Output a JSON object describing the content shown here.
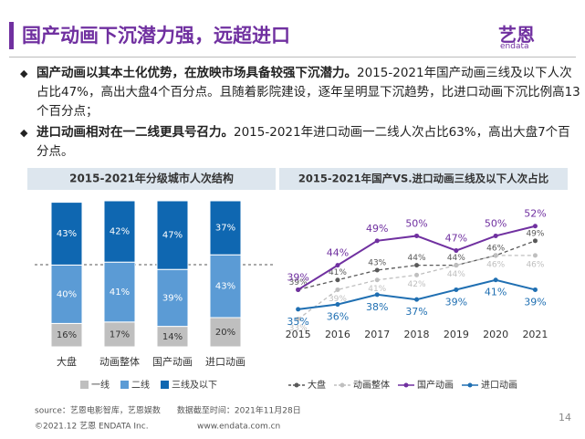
{
  "title": "国产动画下沉潜力强，远超进口",
  "logo": {
    "name": "艺恩",
    "sub": "endata"
  },
  "bullets": [
    {
      "bold": "国产动画以其本土化优势，在放映市场具备较强下沉潜力。",
      "text": "2015-2021年国产动画三线及以下人次占比47%，高出大盘4个百分点。且随着影院建设，逐年呈明显下沉趋势，比进口动画下沉比例高13个百分点；"
    },
    {
      "bold": "进口动画相对在一二线更具号召力。",
      "text": "2015-2021年进口动画一二线人次占比63%，高出大盘7个百分点。"
    }
  ],
  "source": "source：艺恩电影智库，艺恩娱数　　数据截至时间：2021年11月28日",
  "footer_left": "©2021.12 艺恩 ENDATA Inc.",
  "footer_right": "www.endata.com.cn",
  "page_number": "14",
  "chart_data": [
    {
      "type": "bar",
      "stacked": true,
      "title": "2015-2021年分级城市人次结构",
      "categories": [
        "大盘",
        "动画整体",
        "国产动画",
        "进口动画"
      ],
      "ylim": [
        0,
        100
      ],
      "series": [
        {
          "name": "一线",
          "color": "#bfbfbf",
          "values": [
            16,
            17,
            14,
            20
          ],
          "value_labels": [
            "16%",
            "17%",
            "14%",
            "20%"
          ]
        },
        {
          "name": "二线",
          "color": "#5b9bd5",
          "values": [
            40,
            41,
            39,
            43
          ],
          "value_labels": [
            "40%",
            "41%",
            "39%",
            "43%"
          ]
        },
        {
          "name": "三线及以下",
          "color": "#0f67b1",
          "values": [
            43,
            42,
            47,
            37
          ],
          "value_labels": [
            "43%",
            "42%",
            "47%",
            "37%"
          ]
        }
      ]
    },
    {
      "type": "line",
      "title": "2015-2021年国产VS.进口动画三线及以下人次占比",
      "categories": [
        "2015",
        "2016",
        "2017",
        "2018",
        "2019",
        "2020",
        "2021"
      ],
      "ylim": [
        32,
        54
      ],
      "series": [
        {
          "name": "大盘",
          "color": "#595959",
          "dashed": true,
          "values": [
            39,
            41,
            43,
            44,
            44,
            46,
            49
          ],
          "value_labels": [
            "39%",
            "41%",
            "43%",
            "44%",
            "44%",
            "46%",
            "49%"
          ]
        },
        {
          "name": "动画整体",
          "color": "#bfbfbf",
          "dashed": true,
          "values": [
            33,
            39,
            41,
            42,
            44,
            46,
            46
          ],
          "value_labels": [
            "33%",
            "39%",
            "41%",
            "42%",
            "44%",
            "46%",
            "46%"
          ]
        },
        {
          "name": "国产动画",
          "color": "#7030a0",
          "dashed": false,
          "values": [
            39,
            44,
            49,
            50,
            47,
            50,
            52
          ],
          "value_labels": [
            "39%",
            "44%",
            "49%",
            "50%",
            "47%",
            "50%",
            "52%"
          ]
        },
        {
          "name": "进口动画",
          "color": "#1f6fb2",
          "dashed": false,
          "values": [
            35,
            36,
            38,
            37,
            39,
            41,
            39
          ],
          "value_labels": [
            "35%",
            "36%",
            "38%",
            "37%",
            "39%",
            "41%",
            "39%"
          ]
        }
      ]
    }
  ]
}
